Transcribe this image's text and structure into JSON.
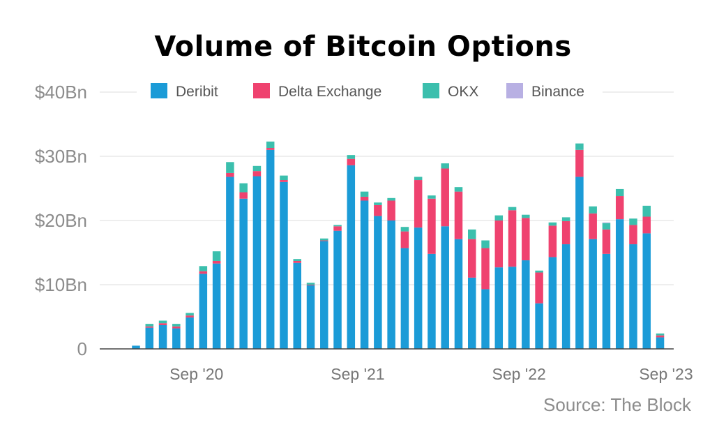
{
  "chart_data": {
    "type": "bar",
    "stacked": true,
    "title": "Volume of Bitcoin Options",
    "source": "Source: The Block",
    "xlabel": "",
    "ylabel": "",
    "ylim": [
      0,
      40
    ],
    "y_ticks": [
      {
        "value": 0,
        "label": "0"
      },
      {
        "value": 10,
        "label": "$10Bn"
      },
      {
        "value": 20,
        "label": "$20Bn"
      },
      {
        "value": 30,
        "label": "$30Bn"
      },
      {
        "value": 40,
        "label": "$40Bn"
      }
    ],
    "x_ticks": [
      {
        "index": 4.5,
        "label": "Sep '20"
      },
      {
        "index": 16.5,
        "label": "Sep '21"
      },
      {
        "index": 28.5,
        "label": "Sep '22"
      },
      {
        "index": 40.5,
        "label": "Sep '23"
      }
    ],
    "legend_position": "top",
    "grid": true,
    "series": [
      {
        "name": "Deribit",
        "color": "#1b9bd7",
        "values": [
          0.5,
          3.3,
          3.7,
          3.2,
          4.9,
          11.7,
          13.3,
          26.8,
          23.4,
          26.9,
          31,
          26,
          13.4,
          9.9,
          16.8,
          18.4,
          28.6,
          23.1,
          20.7,
          20,
          15.7,
          18.9,
          14.8,
          19.1,
          17.1,
          11.1,
          9.3,
          12.7,
          12.8,
          13.8,
          7.1,
          14.3,
          16.3,
          26.8,
          17.1,
          14.8,
          20.2,
          16.3,
          18,
          1.8
        ]
      },
      {
        "name": "Delta Exchange",
        "color": "#ef426f",
        "values": [
          0,
          0.2,
          0.3,
          0.3,
          0.3,
          0.4,
          0.4,
          0.6,
          1,
          0.8,
          0.3,
          0.3,
          0.3,
          0.1,
          0.1,
          0.7,
          1,
          0.6,
          1.7,
          3.1,
          2.6,
          7.4,
          8.6,
          9,
          7.4,
          6,
          6.4,
          7.3,
          8.8,
          6.6,
          4.8,
          4.9,
          3.6,
          4.2,
          4,
          3.8,
          3.6,
          3,
          2.6,
          0.3
        ]
      },
      {
        "name": "OKX",
        "color": "#3bbfad",
        "values": [
          0,
          0.4,
          0.4,
          0.4,
          0.4,
          0.8,
          1.5,
          1.7,
          1.4,
          0.8,
          1,
          0.7,
          0.3,
          0.3,
          0.3,
          0.2,
          0.6,
          0.8,
          0.4,
          0.4,
          0.7,
          0.5,
          0.5,
          0.8,
          0.7,
          1.5,
          1.2,
          0.8,
          0.5,
          0.5,
          0.3,
          0.5,
          0.6,
          1,
          1.1,
          1,
          1.1,
          1,
          1.7,
          0.3
        ]
      },
      {
        "name": "Binance",
        "color": "#b8b0e3",
        "values": [
          0,
          0,
          0,
          0,
          0,
          0,
          0,
          0,
          0,
          0,
          0,
          0,
          0,
          0,
          0,
          0,
          0,
          0,
          0,
          0,
          0,
          0,
          0,
          0,
          0,
          0,
          0,
          0,
          0,
          0,
          0,
          0,
          0,
          0,
          0,
          0.1,
          0,
          0,
          0,
          0
        ]
      }
    ]
  }
}
